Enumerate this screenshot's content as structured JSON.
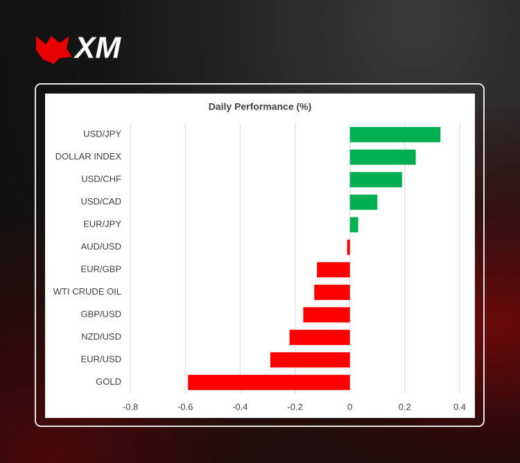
{
  "logo": {
    "text": "XM"
  },
  "chart_data": {
    "type": "barh",
    "title": "Daily Performance (%)",
    "categories": [
      "USD/JPY",
      "DOLLAR INDEX",
      "USD/CHF",
      "USD/CAD",
      "EUR/JPY",
      "AUD/USD",
      "EUR/GBP",
      "WTI CRUDE OIL",
      "GBP/USD",
      "NZD/USD",
      "EUR/USD",
      "GOLD"
    ],
    "values": [
      0.33,
      0.24,
      0.19,
      0.1,
      0.03,
      -0.01,
      -0.12,
      -0.13,
      -0.17,
      -0.22,
      -0.29,
      -0.59
    ],
    "positive_color": "#00b050",
    "negative_color": "#ff0000",
    "xlim": [
      -0.8,
      0.4
    ],
    "xticks": [
      -0.8,
      -0.6,
      -0.4,
      -0.2,
      0,
      0.2,
      0.4
    ],
    "grid": true
  }
}
